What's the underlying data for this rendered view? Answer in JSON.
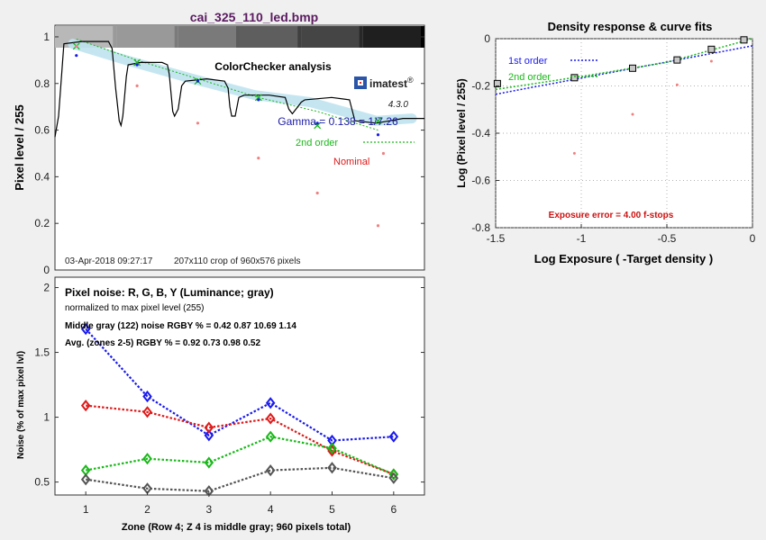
{
  "file_title": "cai_325_110_led.bmp",
  "colors": {
    "title": "#5a1a60",
    "blue": "#1a1aee",
    "red": "#dd1a1a",
    "green": "#1ab81a",
    "gray": "#555555",
    "nominal": "#f08080"
  },
  "brand": {
    "name": "imatest",
    "registered": "®",
    "version": "4.3.0",
    "icon": "imatest-logo-icon"
  },
  "chart_data": [
    {
      "id": "analysis",
      "type": "line",
      "title": "ColorChecker analysis",
      "ylabel": "Pixel level / 255",
      "xlim": [
        0,
        207
      ],
      "ylim": [
        0,
        1.05
      ],
      "yticks": [
        0,
        0.2,
        0.4,
        0.6,
        0.8,
        1
      ],
      "ytick_labels": [
        "0",
        "0.2",
        "0.4",
        "0.6",
        "0.8",
        "1"
      ],
      "gamma_text": "Gamma = 0.138 = 1/7.26",
      "second_order_label": "2nd order",
      "nominal_label": "Nominal",
      "footer_date": "03-Apr-2018 09:27:17",
      "footer_crop": "207x110 crop of 960x576 pixels",
      "strip_levels": [
        0.72,
        0.6,
        0.48,
        0.37,
        0.27,
        0.12
      ],
      "pixel_profile": [
        [
          0,
          0.57
        ],
        [
          2,
          0.66
        ],
        [
          5,
          0.97
        ],
        [
          15,
          0.98
        ],
        [
          30,
          0.98
        ],
        [
          32,
          0.95
        ],
        [
          34,
          0.78
        ],
        [
          36,
          0.64
        ],
        [
          37,
          0.62
        ],
        [
          38,
          0.66
        ],
        [
          40,
          0.83
        ],
        [
          41,
          0.88
        ],
        [
          48,
          0.89
        ],
        [
          60,
          0.89
        ],
        [
          63,
          0.88
        ],
        [
          64,
          0.84
        ],
        [
          66,
          0.68
        ],
        [
          67,
          0.66
        ],
        [
          69,
          0.69
        ],
        [
          71,
          0.79
        ],
        [
          73,
          0.81
        ],
        [
          85,
          0.82
        ],
        [
          95,
          0.81
        ],
        [
          97,
          0.78
        ],
        [
          98,
          0.7
        ],
        [
          99,
          0.66
        ],
        [
          101,
          0.66
        ],
        [
          103,
          0.74
        ],
        [
          106,
          0.75
        ],
        [
          120,
          0.75
        ],
        [
          129,
          0.74
        ],
        [
          131,
          0.69
        ],
        [
          133,
          0.67
        ],
        [
          136,
          0.7
        ],
        [
          138,
          0.72
        ],
        [
          140,
          0.73
        ],
        [
          155,
          0.74
        ],
        [
          165,
          0.73
        ],
        [
          167,
          0.67
        ],
        [
          168,
          0.64
        ],
        [
          180,
          0.63
        ],
        [
          195,
          0.65
        ],
        [
          200,
          0.65
        ],
        [
          207,
          0.65
        ]
      ],
      "band_points": [
        [
          10,
          0.97
        ],
        [
          40,
          0.9
        ],
        [
          77,
          0.82
        ],
        [
          112,
          0.75
        ],
        [
          143,
          0.72
        ],
        [
          180,
          0.64
        ],
        [
          200,
          0.65
        ]
      ],
      "measured_x": [
        12,
        46,
        80,
        114,
        147,
        181
      ],
      "measured_y": [
        0.96,
        0.89,
        0.81,
        0.74,
        0.62,
        0.64
      ],
      "fit_y": [
        0.99,
        0.9,
        0.82,
        0.74,
        0.68,
        0.6
      ],
      "blue_dots_y": [
        0.92,
        0.88,
        0.81,
        0.73,
        0.63,
        0.58
      ],
      "nominal_x": [
        12,
        46,
        80,
        114,
        147,
        181
      ],
      "nominal_y": [
        0.96,
        0.79,
        0.63,
        0.48,
        0.33,
        0.19
      ],
      "extra_nominal": [
        [
          184,
          0.5
        ]
      ]
    },
    {
      "id": "density",
      "type": "line",
      "title": "Density response & curve fits",
      "xlabel": "Log Exposure ( -Target density )",
      "ylabel": "Log (Pixel level / 255)",
      "xlim": [
        -1.5,
        0
      ],
      "ylim": [
        -0.8,
        0
      ],
      "xticks": [
        -1.5,
        -1,
        -0.5,
        0
      ],
      "xtick_labels": [
        "-1.5",
        "-1",
        "-0.5",
        "0"
      ],
      "yticks": [
        -0.8,
        -0.6,
        -0.4,
        -0.2,
        0
      ],
      "ytick_labels": [
        "-0.8",
        "-0.6",
        "-0.4",
        "-0.2",
        "0"
      ],
      "legend": [
        "1st order",
        "2nd order"
      ],
      "exposure_error": "Exposure error = 4.00 f-stops",
      "points_x": [
        -1.49,
        -1.04,
        -0.7,
        -0.44,
        -0.24,
        -0.05
      ],
      "points_y": [
        -0.19,
        -0.165,
        -0.125,
        -0.09,
        -0.045,
        -0.005
      ],
      "first_order": [
        [
          -1.5,
          -0.235
        ],
        [
          0,
          -0.03
        ]
      ],
      "second_order": [
        [
          -1.5,
          -0.215
        ],
        [
          -1.0,
          -0.16
        ],
        [
          -0.5,
          -0.1
        ],
        [
          0,
          0.0
        ]
      ],
      "nominal_x": [
        -1.04,
        -0.7,
        -0.44,
        -0.24
      ],
      "nominal_y": [
        -0.485,
        -0.32,
        -0.195,
        -0.095
      ]
    },
    {
      "id": "noise",
      "type": "line",
      "title": "Pixel noise: R, G, B, Y (Luminance; gray)",
      "subtitle": "normalized to max pixel level (255)",
      "note1": "Middle gray (122) noise RGBY % = 0.42  0.87 10.69  1.14",
      "note2": "Avg. (zones 2-5) RGBY % = 0.92  0.73  0.98  0.52",
      "xlabel": "Zone  (Row 4;  Z 4 is middle gray;  960 pixels total)",
      "ylabel": "Noise (% of max pixel lvl)",
      "categories": [
        1,
        2,
        3,
        4,
        5,
        6
      ],
      "xlim": [
        0.5,
        6.5
      ],
      "ylim": [
        0.4,
        2.08
      ],
      "yticks": [
        0.5,
        1,
        1.5,
        2
      ],
      "ytick_labels": [
        "0.5",
        "1",
        "1.5",
        "2"
      ],
      "series": [
        {
          "color": "#1a1aee",
          "values": [
            1.68,
            1.16,
            0.86,
            1.11,
            0.82,
            0.85
          ]
        },
        {
          "color": "#dd1a1a",
          "values": [
            1.09,
            1.04,
            0.92,
            0.99,
            0.74,
            0.56
          ]
        },
        {
          "color": "#1ab81a",
          "values": [
            0.59,
            0.68,
            0.65,
            0.85,
            0.76,
            0.56
          ]
        },
        {
          "color": "#555555",
          "values": [
            0.52,
            0.45,
            0.43,
            0.59,
            0.61,
            0.53
          ]
        }
      ]
    }
  ]
}
